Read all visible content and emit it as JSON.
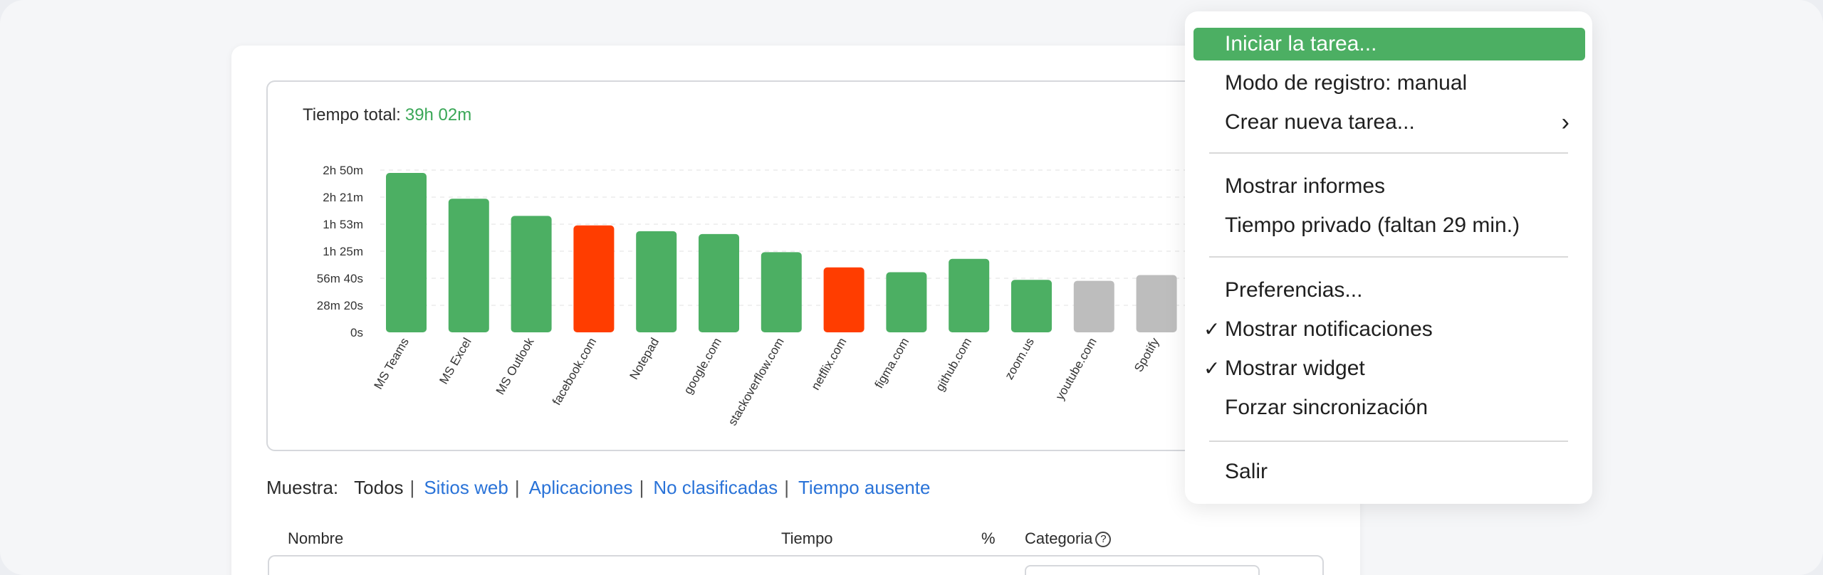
{
  "summary": {
    "label": "Tiempo total:",
    "value": "39h 02m"
  },
  "chart_data": {
    "type": "bar",
    "categories": [
      "MS Teams",
      "MS Excel",
      "MS Outlook",
      "facebook.com",
      "Notepad",
      "google.com",
      "stackoverflow.com",
      "netflix.com",
      "figma.com",
      "github.com",
      "zoom.us",
      "youtube.com",
      "Spotify"
    ],
    "values": [
      167,
      140,
      122,
      112,
      106,
      103,
      84,
      68,
      63,
      77,
      55,
      54,
      60
    ],
    "value_unit": "minutes",
    "bar_colors": [
      "#4caf63",
      "#4caf63",
      "#4caf63",
      "#ff3d00",
      "#4caf63",
      "#4caf63",
      "#4caf63",
      "#ff3d00",
      "#4caf63",
      "#4caf63",
      "#4caf63",
      "#bdbdbd",
      "#bdbdbd"
    ],
    "ytick_labels": [
      "0s",
      "28m 20s",
      "56m 40s",
      "1h 25m",
      "1h 53m",
      "2h 21m",
      "2h 50m"
    ],
    "ytick_values": [
      0,
      28.33,
      56.67,
      85,
      113.33,
      141.67,
      170
    ],
    "ylim": [
      0,
      170
    ],
    "grid": "horizontal dashed"
  },
  "filters": {
    "label": "Muestra:",
    "options": [
      "Todos",
      "Sitios web",
      "Aplicaciones",
      "No clasificadas",
      "Tiempo ausente"
    ]
  },
  "table": {
    "headers": {
      "name": "Nombre",
      "time": "Tiempo",
      "percent": "%",
      "category": "Categoria"
    },
    "help_glyph": "?"
  },
  "menu": {
    "items": [
      {
        "label": "Iniciar la tarea...",
        "active": true
      },
      {
        "label": "Modo de registro: manual"
      },
      {
        "label": "Crear nueva tarea...",
        "submenu": true
      },
      {
        "label": "Mostrar informes"
      },
      {
        "label": "Tiempo privado (faltan 29 min.)"
      },
      {
        "label": "Preferencias..."
      },
      {
        "label": "Mostrar notificaciones",
        "checked": true
      },
      {
        "label": "Mostrar widget",
        "checked": true
      },
      {
        "label": "Forzar sincronización"
      },
      {
        "label": "Salir"
      }
    ],
    "check_glyph": "✓",
    "submenu_glyph": "›"
  },
  "colors": {
    "accent": "#4caf63",
    "link": "#2a73d8",
    "distracting": "#ff3d00",
    "neutral": "#bdbdbd"
  }
}
